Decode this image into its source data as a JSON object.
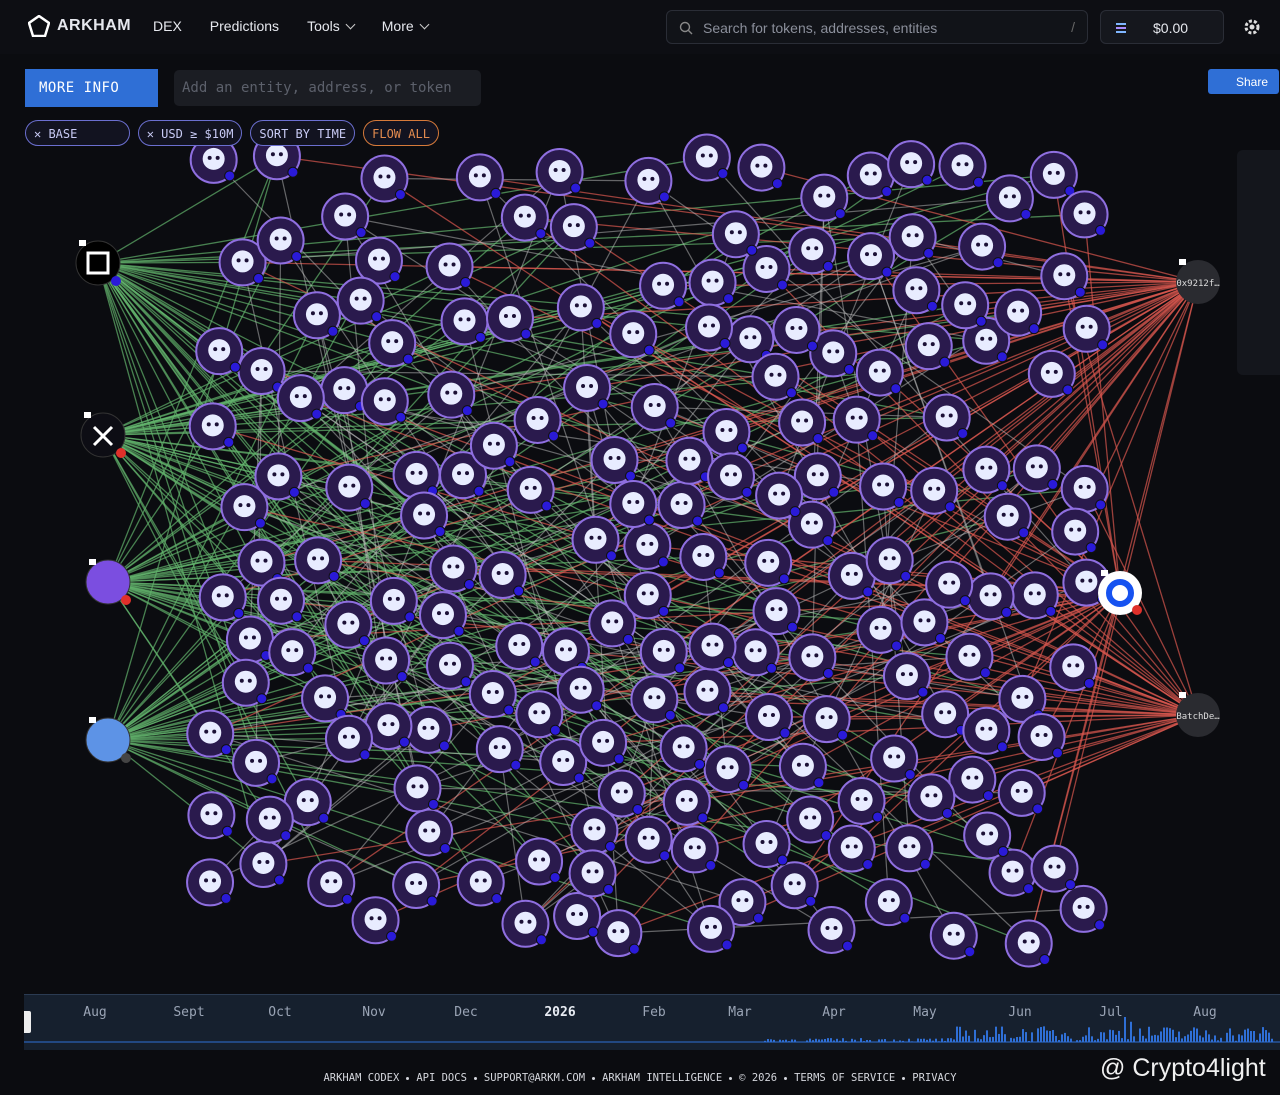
{
  "header": {
    "logo": "ARKHAM",
    "nav": [
      "DEX",
      "Predictions",
      "Tools",
      "More"
    ],
    "search_placeholder": "Search for tokens, addresses, entities",
    "search_shortcut": "/",
    "balance": "$0.00"
  },
  "toolbar": {
    "more_info": "MORE INFO",
    "entity_input_placeholder": "Add an entity, address, or token",
    "share": "Share",
    "filters": [
      "BASE",
      "USD ≥ $10M",
      "SORT BY TIME",
      "FLOW ALL"
    ]
  },
  "graph": {
    "node_labels": [
      "0x9212f…",
      "BatchDe…"
    ]
  },
  "timeline": {
    "labels": [
      "Aug",
      "Sept",
      "Oct",
      "Nov",
      "Dec",
      "2026",
      "Feb",
      "Mar",
      "Apr",
      "May",
      "Jun",
      "Jul",
      "Aug"
    ]
  },
  "footer": {
    "links": [
      "ARKHAM CODEX",
      "API DOCS",
      "SUPPORT@ARKM.COM",
      "ARKHAM INTELLIGENCE",
      "© 2026",
      "TERMS OF SERVICE",
      "PRIVACY"
    ]
  },
  "watermark": "@ Crypto4light"
}
